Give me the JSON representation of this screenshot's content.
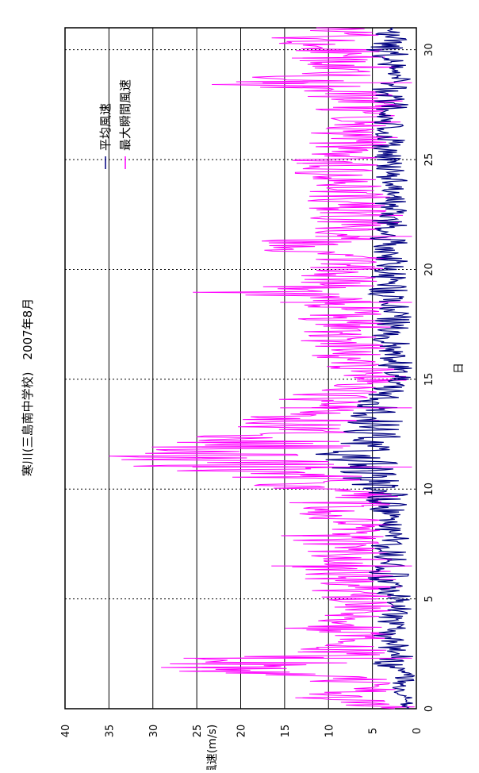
{
  "chart_data": {
    "type": "line",
    "orientation": "rotated-90-clockwise",
    "title": "寒川(三島南中学校)　2007年8月",
    "xlabel": "日",
    "ylabel": "風速(m/s)",
    "xlim": [
      0,
      31
    ],
    "ylim": [
      0,
      40
    ],
    "xticks": [
      0,
      5,
      10,
      15,
      20,
      25,
      30
    ],
    "yticks": [
      0,
      5,
      10,
      15,
      20,
      25,
      30,
      35,
      40
    ],
    "grid": "y-solid, x-dotted",
    "legend_position": "top-right",
    "series": [
      {
        "name": "平均風速",
        "color": "#000080",
        "x": [
          0,
          0.5,
          1,
          1.5,
          2,
          2.5,
          3,
          3.5,
          4,
          4.5,
          5,
          5.5,
          6,
          6.5,
          7,
          7.5,
          8,
          8.5,
          9,
          9.5,
          10,
          10.5,
          11,
          11.5,
          12,
          12.5,
          13,
          13.5,
          14,
          14.5,
          15,
          15.5,
          16,
          16.5,
          17,
          17.5,
          18,
          18.5,
          19,
          19.5,
          20,
          20.5,
          21,
          21.5,
          22,
          22.5,
          23,
          23.5,
          24,
          24.5,
          25,
          25.5,
          26,
          26.5,
          27,
          27.5,
          28,
          28.5,
          29,
          29.5,
          30,
          30.5,
          31
        ],
        "values": [
          1.5,
          1.2,
          2,
          1.5,
          3.5,
          2,
          3,
          2.5,
          2.8,
          2,
          2.5,
          3,
          3.2,
          3,
          2.8,
          3,
          3.2,
          2.5,
          3,
          3.5,
          4,
          5,
          6,
          7,
          6,
          5,
          4.5,
          5,
          4,
          3.5,
          2,
          2.5,
          3,
          2.8,
          3.5,
          3,
          2.5,
          3,
          3.5,
          3,
          3.2,
          2.8,
          3.5,
          3,
          2.5,
          3,
          3,
          2.8,
          3,
          3.2,
          3,
          2.8,
          3,
          2.5,
          3,
          2.8,
          3,
          2.5,
          3,
          3,
          3.5,
          3.2,
          3
        ]
      },
      {
        "name": "最大瞬間風速",
        "color": "#ff00ff",
        "x": [
          0,
          0.5,
          1,
          1.5,
          2,
          2.5,
          3,
          3.5,
          4,
          4.5,
          5,
          5.5,
          6,
          6.5,
          7,
          7.5,
          8,
          8.5,
          9,
          9.5,
          10,
          10.5,
          11,
          11.5,
          12,
          12.5,
          13,
          13.5,
          14,
          14.5,
          15,
          15.5,
          16,
          16.5,
          17,
          17.5,
          18,
          18.5,
          19,
          19.5,
          20,
          20.5,
          21,
          21.5,
          22,
          22.5,
          23,
          23.5,
          24,
          24.5,
          25,
          25.5,
          26,
          26.5,
          27,
          27.5,
          28,
          28.5,
          29,
          29.5,
          30,
          30.5,
          31
        ],
        "values": [
          3,
          8,
          4,
          12,
          24,
          10,
          6,
          9,
          7,
          6,
          8,
          7,
          9,
          8,
          7,
          8,
          9,
          7,
          8,
          9,
          10,
          13,
          20,
          22,
          18,
          14,
          12,
          14,
          11,
          8,
          5,
          6,
          8,
          7,
          9,
          8,
          9,
          8,
          16,
          9,
          8,
          7,
          12,
          9,
          6,
          7,
          8,
          7,
          8,
          9,
          8,
          7,
          8,
          6,
          7,
          6,
          8,
          17,
          9,
          8,
          9,
          10,
          8
        ]
      }
    ],
    "annotations": [
      {
        "x": 2.3,
        "y": 26.5,
        "series": "最大瞬間風速"
      },
      {
        "x": 11,
        "y": 25.5,
        "series": "最大瞬間風速"
      },
      {
        "x": 6.5,
        "y": 16.5,
        "series": "最大瞬間風速"
      },
      {
        "x": 18.5,
        "y": 15.5,
        "series": "最大瞬間風速"
      },
      {
        "x": 21.5,
        "y": 11.5,
        "series": "最大瞬間風速"
      },
      {
        "x": 28.5,
        "y": 17.5,
        "series": "最大瞬間風速"
      },
      {
        "x": 13.7,
        "y": 15.5,
        "series": "最大瞬間風速"
      }
    ]
  }
}
